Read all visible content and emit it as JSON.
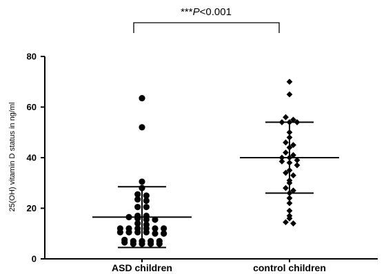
{
  "chart_data": {
    "type": "scatter",
    "subtype": "dot-plot-with-mean-sd",
    "ylabel": "25(OH) vitamin D status in ng/ml",
    "ylim": [
      0,
      80
    ],
    "yticks": [
      0,
      20,
      40,
      60,
      80
    ],
    "grid": false,
    "categories": [
      "ASD children",
      "control children"
    ],
    "series": [
      {
        "category": "ASD children",
        "marker": "circle",
        "mean": 16.5,
        "sd_upper": 28.5,
        "sd_lower": 4.5,
        "values": [
          63.5,
          52,
          30.5,
          28,
          25.5,
          25,
          23.5,
          23,
          20.5,
          20.5,
          17,
          17,
          16.5,
          16,
          15.5,
          15.5,
          14,
          13.5,
          12,
          12,
          12,
          12,
          12,
          12,
          10.5,
          10.5,
          10.5,
          10.5,
          10,
          10,
          7.5,
          7,
          7,
          7,
          7,
          6.5,
          6,
          6,
          6,
          6
        ]
      },
      {
        "category": "control children",
        "marker": "diamond",
        "mean": 40,
        "sd_upper": 54,
        "sd_lower": 26,
        "values": [
          70,
          65,
          56,
          55,
          54,
          54,
          54,
          50,
          48,
          46,
          45,
          44,
          42,
          41,
          40,
          40,
          39,
          38.5,
          38,
          37,
          35,
          34,
          33,
          31,
          30,
          28,
          27,
          26,
          24,
          22,
          19,
          17,
          16,
          14.5,
          14
        ]
      }
    ],
    "annotation": {
      "stars": "***",
      "p_letter": "P",
      "p_rest": "<0.001"
    }
  }
}
